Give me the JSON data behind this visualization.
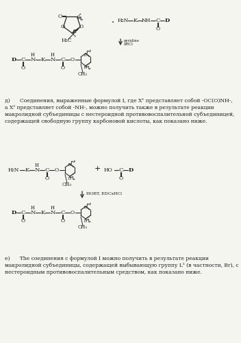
{
  "bg_color": "#f5f5f0",
  "text_color": "#1a1a1a",
  "line_color": "#2a2a2a",
  "figsize": [
    3.52,
    5.0
  ],
  "dpi": 100,
  "lines_d": [
    "д)      Соединения, выраженные формулой I, где X¹ представляет собой -OC(O)NH-,",
    "а X² представляет собой -NH-, можно получить также в результате реакции",
    "макролидной субъединицы с нестероидной противовоспалительной субъединицей,",
    "содержащей свободную группу карбоновой кислоты, как показано ниже."
  ],
  "lines_e": [
    "е)      The соединения с формулой I можно получить в результате реакции",
    "макролидной субъединицы, содержащей выбывающую группу L² (в частности, Br), с",
    "нестероидным противовоспалительным средством, как показано ниже."
  ]
}
